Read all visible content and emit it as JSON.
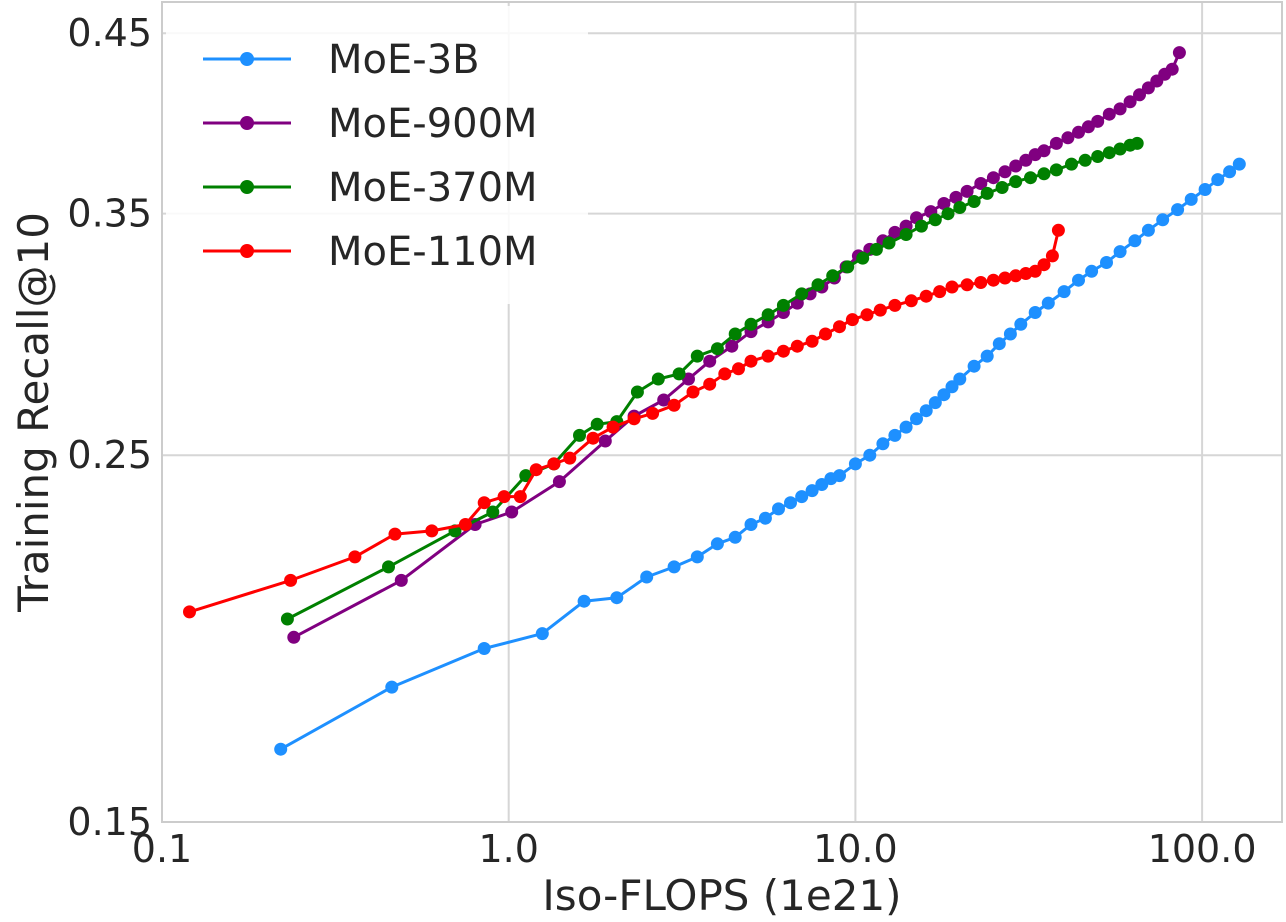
{
  "chart_data": {
    "type": "line",
    "title": "",
    "xlabel": "Iso-FLOPS (1e21)",
    "ylabel": "Training Recall@10",
    "xscale": "log",
    "yscale": "log",
    "xlim": [
      0.1,
      170
    ],
    "ylim": [
      0.15,
      0.47
    ],
    "xticks": [
      0.1,
      1.0,
      10.0,
      100.0
    ],
    "xtick_labels": [
      "0.1",
      "1.0",
      "10.0",
      "100.0"
    ],
    "yticks": [
      0.15,
      0.25,
      0.35,
      0.45
    ],
    "ytick_labels": [
      "0.15",
      "0.25",
      "0.35",
      "0.45"
    ],
    "grid": true,
    "legend_position": "top-left",
    "series": [
      {
        "name": "MoE-3B",
        "color": "#1E90FF",
        "x": [
          0.22,
          0.46,
          0.85,
          1.25,
          1.65,
          2.05,
          2.5,
          3.0,
          3.5,
          4.0,
          4.5,
          5.0,
          5.5,
          6.0,
          6.5,
          7.0,
          7.5,
          8.0,
          8.5,
          9.0,
          10.0,
          11.0,
          12.0,
          13.0,
          14.0,
          15.0,
          16.0,
          17.0,
          18.0,
          19.0,
          20.0,
          22.0,
          24.0,
          26.0,
          28.0,
          30.0,
          33.0,
          36.0,
          40.0,
          44.0,
          48.0,
          53.0,
          58.0,
          64.0,
          70.0,
          77.0,
          85.0,
          93.0,
          102.0,
          111.0,
          120.0,
          128.0
        ],
        "y": [
          0.166,
          0.181,
          0.191,
          0.195,
          0.204,
          0.205,
          0.211,
          0.214,
          0.217,
          0.221,
          0.223,
          0.227,
          0.229,
          0.232,
          0.234,
          0.236,
          0.238,
          0.24,
          0.242,
          0.243,
          0.247,
          0.25,
          0.254,
          0.257,
          0.26,
          0.263,
          0.266,
          0.269,
          0.272,
          0.275,
          0.278,
          0.283,
          0.287,
          0.292,
          0.296,
          0.3,
          0.305,
          0.309,
          0.314,
          0.319,
          0.323,
          0.327,
          0.332,
          0.337,
          0.342,
          0.347,
          0.352,
          0.357,
          0.362,
          0.367,
          0.371,
          0.375
        ]
      },
      {
        "name": "MoE-900M",
        "color": "#800080",
        "x": [
          0.24,
          0.49,
          0.8,
          1.02,
          1.4,
          1.9,
          2.3,
          2.8,
          3.3,
          3.8,
          4.4,
          5.0,
          5.6,
          6.2,
          6.8,
          7.4,
          8.0,
          8.7,
          9.4,
          10.2,
          11.0,
          12.0,
          13.0,
          14.0,
          15.0,
          16.5,
          18.0,
          19.5,
          21.0,
          23.0,
          25.0,
          27.0,
          29.0,
          31.0,
          33.0,
          35.0,
          38.0,
          41.0,
          44.0,
          47.0,
          50.0,
          54.0,
          58.0,
          62.0,
          66.0,
          70.0,
          74.0,
          78.0,
          82.0,
          86.0
        ],
        "y": [
          0.194,
          0.21,
          0.227,
          0.231,
          0.241,
          0.255,
          0.264,
          0.27,
          0.278,
          0.285,
          0.291,
          0.297,
          0.301,
          0.305,
          0.309,
          0.313,
          0.316,
          0.32,
          0.325,
          0.33,
          0.333,
          0.337,
          0.341,
          0.344,
          0.348,
          0.351,
          0.355,
          0.358,
          0.361,
          0.365,
          0.368,
          0.371,
          0.374,
          0.377,
          0.38,
          0.382,
          0.386,
          0.389,
          0.392,
          0.395,
          0.398,
          0.402,
          0.405,
          0.409,
          0.413,
          0.417,
          0.421,
          0.425,
          0.428,
          0.438
        ]
      },
      {
        "name": "MoE-370M",
        "color": "#008000",
        "x": [
          0.23,
          0.45,
          0.7,
          0.9,
          1.12,
          1.35,
          1.6,
          1.8,
          2.05,
          2.35,
          2.7,
          3.1,
          3.5,
          4.0,
          4.5,
          5.0,
          5.6,
          6.2,
          7.0,
          7.8,
          8.6,
          9.5,
          10.5,
          11.5,
          12.5,
          14.0,
          15.5,
          17.0,
          18.5,
          20.0,
          22.0,
          24.0,
          26.5,
          29.0,
          32.0,
          35.0,
          38.0,
          42.0,
          46.0,
          50.0,
          54.0,
          58.0,
          62.0,
          65.0
        ],
        "y": [
          0.199,
          0.214,
          0.225,
          0.231,
          0.243,
          0.247,
          0.257,
          0.261,
          0.262,
          0.273,
          0.278,
          0.28,
          0.287,
          0.29,
          0.296,
          0.3,
          0.304,
          0.308,
          0.313,
          0.317,
          0.321,
          0.325,
          0.329,
          0.333,
          0.336,
          0.34,
          0.344,
          0.347,
          0.35,
          0.353,
          0.356,
          0.36,
          0.363,
          0.366,
          0.368,
          0.37,
          0.372,
          0.375,
          0.377,
          0.379,
          0.381,
          0.383,
          0.385,
          0.386
        ]
      },
      {
        "name": "MoE-110M",
        "color": "#FF0000",
        "x": [
          0.12,
          0.235,
          0.36,
          0.47,
          0.6,
          0.75,
          0.85,
          0.97,
          1.08,
          1.2,
          1.35,
          1.5,
          1.75,
          2.0,
          2.3,
          2.6,
          3.0,
          3.4,
          3.8,
          4.2,
          4.6,
          5.0,
          5.6,
          6.2,
          6.8,
          7.5,
          8.2,
          9.0,
          9.8,
          10.8,
          11.8,
          13.0,
          14.5,
          16.0,
          17.5,
          19.0,
          21.0,
          23.0,
          25.0,
          27.0,
          29.0,
          31.0,
          33.0,
          35.0,
          37.0,
          38.5
        ],
        "y": [
          0.201,
          0.21,
          0.217,
          0.224,
          0.225,
          0.227,
          0.234,
          0.236,
          0.236,
          0.245,
          0.247,
          0.249,
          0.256,
          0.26,
          0.263,
          0.265,
          0.268,
          0.273,
          0.276,
          0.28,
          0.282,
          0.285,
          0.287,
          0.289,
          0.291,
          0.293,
          0.296,
          0.299,
          0.302,
          0.304,
          0.306,
          0.308,
          0.31,
          0.312,
          0.314,
          0.316,
          0.317,
          0.318,
          0.319,
          0.32,
          0.321,
          0.322,
          0.323,
          0.326,
          0.33,
          0.342
        ]
      }
    ]
  }
}
